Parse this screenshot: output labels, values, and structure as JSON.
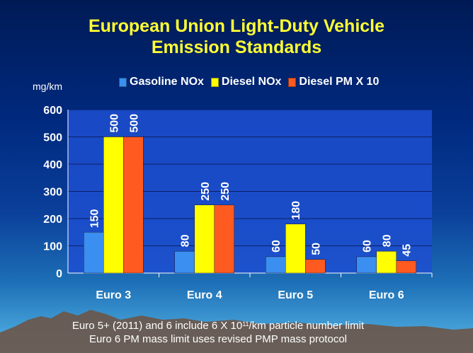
{
  "chart_data": {
    "type": "bar",
    "title_line1": "European Union Light-Duty Vehicle",
    "title_line2": "Emission Standards",
    "ylabel": "mg/km",
    "ylim": [
      0,
      600
    ],
    "yticks": [
      "0",
      "100",
      "200",
      "300",
      "400",
      "500",
      "600"
    ],
    "categories": [
      "Euro 3",
      "Euro 4",
      "Euro 5",
      "Euro 6"
    ],
    "series": [
      {
        "name": "Gasoline NOx",
        "color": "#3a8ff0",
        "values": [
          150,
          80,
          60,
          60
        ]
      },
      {
        "name": "Diesel NOx",
        "color": "#ffff00",
        "values": [
          500,
          250,
          180,
          80
        ]
      },
      {
        "name": "Diesel PM X 10",
        "color": "#ff5a1f",
        "values": [
          500,
          250,
          50,
          45
        ]
      }
    ],
    "legend_position": "top",
    "grid": true
  },
  "footnote": {
    "line1_before": "Euro 5+ (2011) and 6 include 6 X 10",
    "line1_sup": "11",
    "line1_after": "/km particle number limit",
    "line2": "Euro 6 PM mass limit uses revised PMP mass protocol"
  },
  "colors": {
    "title": "#ffff33",
    "text": "#ffffff",
    "plot_background": "#1d4fd0",
    "mountains": "#6b5548"
  }
}
